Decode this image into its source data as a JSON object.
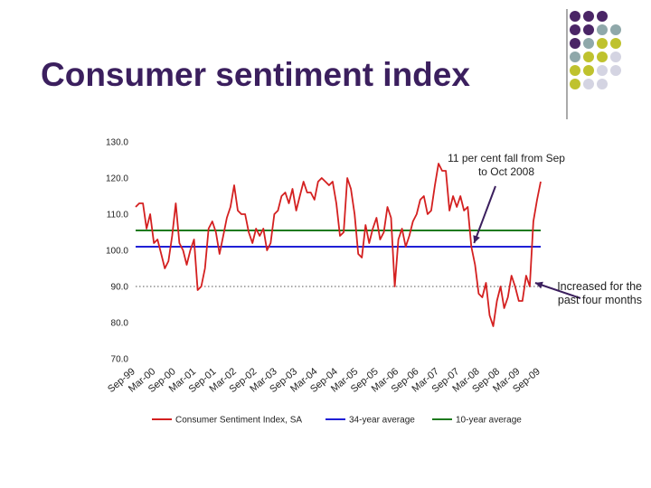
{
  "slide": {
    "title": "Consumer sentiment index"
  },
  "decoration": {
    "colors": [
      "#4a2566",
      "#8fa8aa",
      "#bfc22e",
      "#d4d4e2"
    ],
    "icon": "dot-grid-icon"
  },
  "chart_data": {
    "type": "line",
    "title": "",
    "xlabel": "",
    "ylabel": "",
    "ylim": [
      70,
      130
    ],
    "yticks": [
      "130.0",
      "120.0",
      "110.0",
      "100.0",
      "90.0",
      "80.0",
      "70.0"
    ],
    "ytick_values": [
      130,
      120,
      110,
      100,
      90,
      80,
      70
    ],
    "xticks": [
      "Sep-99",
      "Mar-00",
      "Sep-00",
      "Mar-01",
      "Sep-01",
      "Mar-02",
      "Sep-02",
      "Mar-03",
      "Sep-03",
      "Mar-04",
      "Sep-04",
      "Mar-05",
      "Sep-05",
      "Mar-06",
      "Sep-06",
      "Mar-07",
      "Sep-07",
      "Mar-08",
      "Sep-08",
      "Mar-09",
      "Sep-09"
    ],
    "grid": "dotted line at 90.0",
    "legend_position": "bottom",
    "series": [
      {
        "name": "Consumer Sentiment Index, SA",
        "color": "#d42020",
        "values": [
          112,
          113,
          113,
          106,
          110,
          102,
          103,
          99,
          95,
          97,
          104,
          113,
          102,
          100,
          96,
          100,
          103,
          89,
          90,
          95,
          106,
          108,
          105,
          99,
          104,
          109,
          112,
          118,
          111,
          110,
          110,
          105,
          102,
          106,
          104,
          106,
          100,
          102,
          110,
          111,
          115,
          116,
          113,
          117,
          111,
          115,
          119,
          116,
          116,
          114,
          119,
          120,
          119,
          118,
          119,
          113,
          104,
          105,
          120,
          117,
          110,
          99,
          98,
          107,
          102,
          106,
          109,
          103,
          105,
          112,
          109,
          90,
          103,
          106,
          101,
          104,
          108,
          110,
          114,
          115,
          110,
          111,
          118,
          124,
          122,
          122,
          111,
          115,
          112,
          115,
          111,
          112,
          101,
          96,
          88,
          87,
          91,
          82,
          79,
          86,
          90,
          84,
          87,
          93,
          90,
          86,
          86,
          93,
          90,
          108,
          114,
          119
        ]
      },
      {
        "name": "34-year average",
        "color": "#1f1fd6",
        "values": [
          101,
          101
        ]
      },
      {
        "name": "10-year average",
        "color": "#1e7a1e",
        "values": [
          105.5,
          105.5
        ]
      }
    ],
    "annotations": [
      {
        "text": "11 per cent fall from Sep to Oct 2008",
        "arrow_to_index": 92
      },
      {
        "text": "Increased for the past four months",
        "arrow_to_index": 110
      }
    ]
  }
}
